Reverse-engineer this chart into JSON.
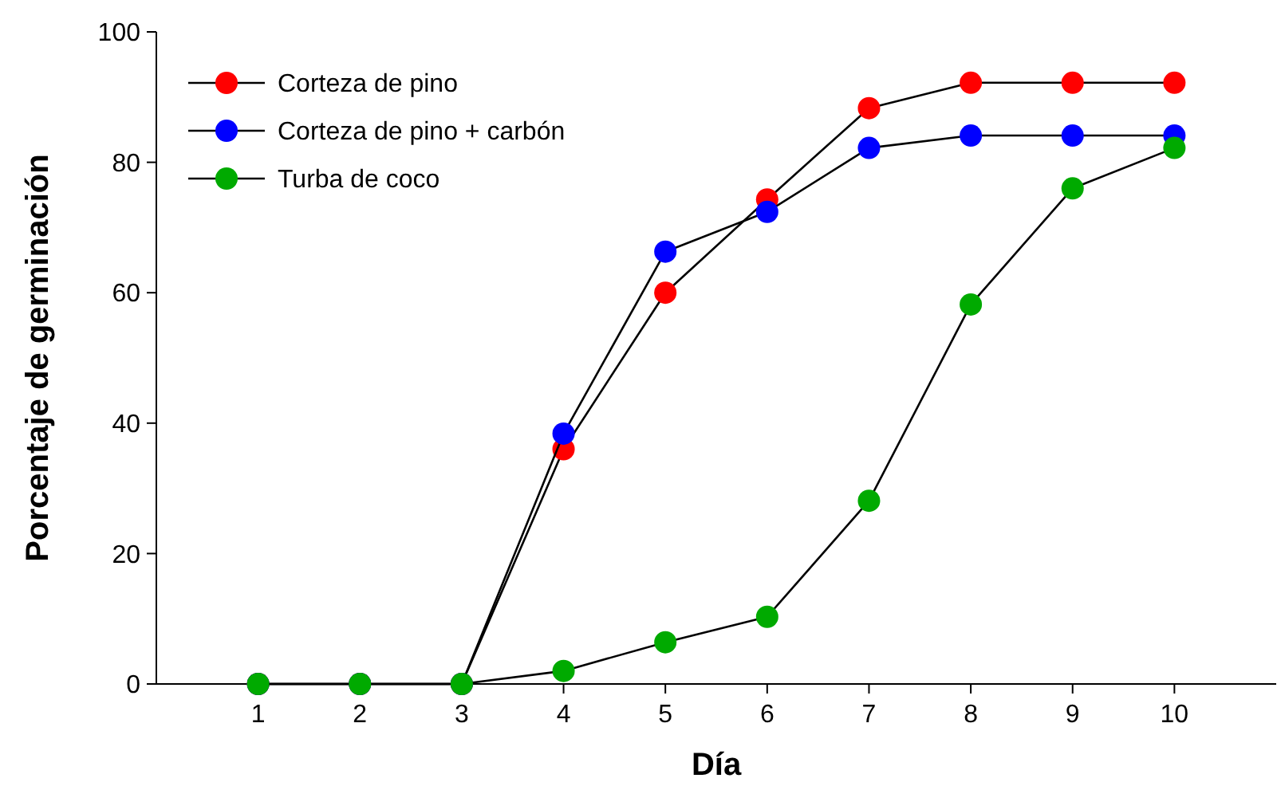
{
  "chart_data": {
    "type": "line",
    "xlabel": "Día",
    "ylabel": "Porcentaje de germinación",
    "x": [
      1,
      2,
      3,
      4,
      5,
      6,
      7,
      8,
      9,
      10
    ],
    "series": [
      {
        "name": "Corteza de pino",
        "color": "#ff0000",
        "values": [
          0,
          0,
          0,
          36,
          60,
          74.3,
          88.3,
          92.2,
          92.2,
          92.2
        ]
      },
      {
        "name": "Corteza de pino + carbón",
        "color": "#0000ff",
        "values": [
          0,
          0,
          0,
          38.4,
          66.3,
          72.4,
          82.2,
          84.1,
          84.1,
          84.1
        ]
      },
      {
        "name": "Turba de coco",
        "color": "#00aa00",
        "values": [
          0,
          0,
          0,
          2,
          6.4,
          10.3,
          28.1,
          58.2,
          76,
          82.2
        ]
      }
    ],
    "xlim": [
      0,
      11
    ],
    "xticks": [
      1,
      2,
      3,
      4,
      5,
      6,
      7,
      8,
      9,
      10
    ],
    "ylim": [
      0,
      100
    ],
    "yticks": [
      0,
      20,
      40,
      60,
      80,
      100
    ],
    "grid": false,
    "legend": "top left",
    "marker": "circle",
    "line_style": "solid"
  }
}
